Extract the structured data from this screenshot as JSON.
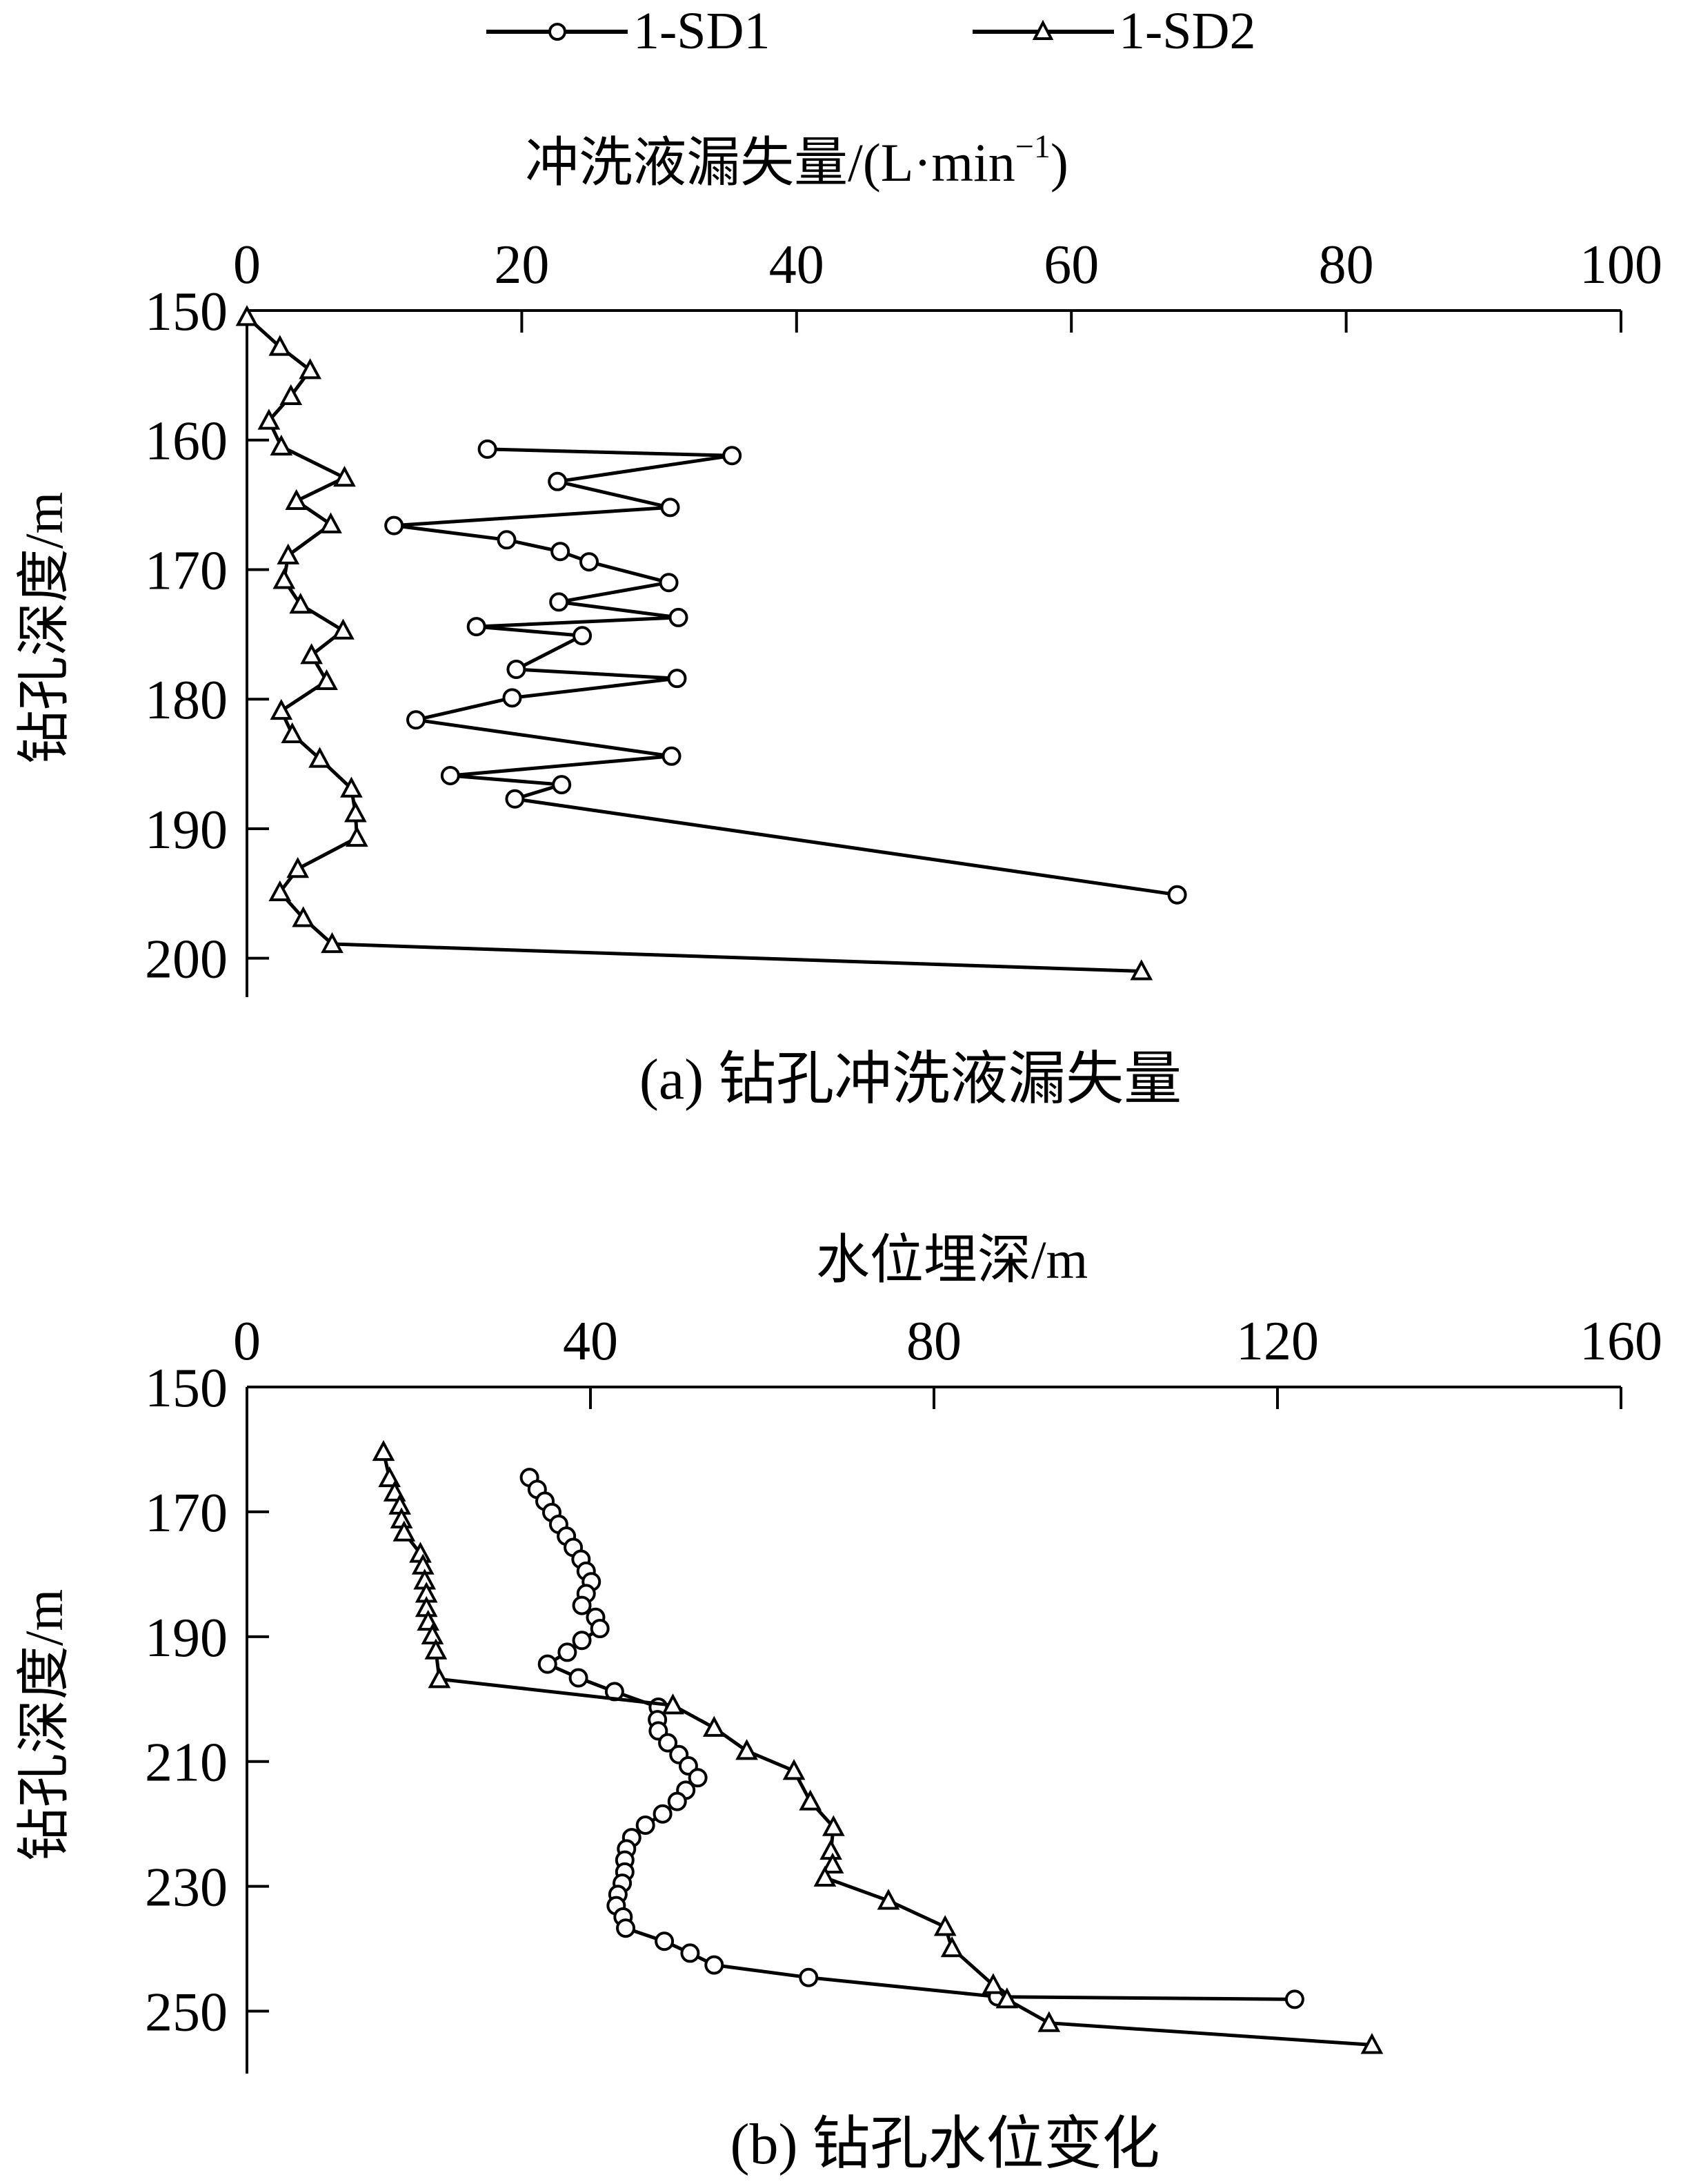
{
  "legend": [
    {
      "name": "1-SD1",
      "marker": "circle"
    },
    {
      "name": "1-SD2",
      "marker": "triangle"
    }
  ],
  "chart_data": [
    {
      "type": "line",
      "panel": "a",
      "caption": "(a)  钻孔冲洗液漏失量",
      "xlabel": "冲洗液漏失量/(L·min",
      "xlabel_sup": "−1",
      "xlabel_tail": ")",
      "ylabel": "钻孔深度/m",
      "xlim": [
        0,
        100
      ],
      "ylim": [
        150,
        203
      ],
      "xticks": [
        0,
        20,
        40,
        60,
        80,
        100
      ],
      "yticks": [
        150,
        160,
        170,
        180,
        190,
        200
      ],
      "x_axis_position": "top",
      "y_inverted": true,
      "grid": false,
      "legend_position": "top",
      "series": [
        {
          "name": "1-SD1",
          "marker": "circle",
          "points": [
            [
              17.5,
              160.7
            ],
            [
              35.3,
              161.2
            ],
            [
              22.6,
              163.2
            ],
            [
              30.8,
              165.2
            ],
            [
              10.7,
              166.6
            ],
            [
              18.9,
              167.7
            ],
            [
              22.8,
              168.6
            ],
            [
              24.9,
              169.4
            ],
            [
              30.7,
              171.0
            ],
            [
              22.7,
              172.5
            ],
            [
              31.4,
              173.7
            ],
            [
              16.7,
              174.4
            ],
            [
              24.4,
              175.1
            ],
            [
              19.6,
              177.7
            ],
            [
              31.3,
              178.4
            ],
            [
              19.3,
              179.9
            ],
            [
              12.3,
              181.6
            ],
            [
              30.9,
              184.4
            ],
            [
              14.8,
              185.9
            ],
            [
              22.9,
              186.6
            ],
            [
              19.5,
              187.7
            ],
            [
              67.7,
              195.1
            ]
          ]
        },
        {
          "name": "1-SD2",
          "marker": "triangle",
          "points": [
            [
              0.0,
              150.5
            ],
            [
              2.4,
              152.8
            ],
            [
              4.6,
              154.6
            ],
            [
              3.2,
              156.6
            ],
            [
              1.6,
              158.5
            ],
            [
              2.5,
              160.5
            ],
            [
              7.1,
              162.9
            ],
            [
              3.6,
              164.7
            ],
            [
              6.1,
              166.5
            ],
            [
              3.0,
              168.9
            ],
            [
              2.7,
              170.8
            ],
            [
              3.9,
              172.7
            ],
            [
              7.0,
              174.7
            ],
            [
              4.7,
              176.6
            ],
            [
              5.8,
              178.6
            ],
            [
              2.5,
              180.9
            ],
            [
              3.3,
              182.7
            ],
            [
              5.3,
              184.6
            ],
            [
              7.6,
              186.9
            ],
            [
              7.9,
              188.8
            ],
            [
              8.0,
              190.7
            ],
            [
              3.7,
              193.1
            ],
            [
              2.4,
              194.9
            ],
            [
              4.1,
              196.9
            ],
            [
              6.2,
              198.9
            ],
            [
              65.1,
              201.0
            ]
          ]
        }
      ]
    },
    {
      "type": "line",
      "panel": "b",
      "caption": "(b)  钻孔水位变化",
      "xlabel": "水位埋深/m",
      "ylabel": "钻孔深度/m",
      "xlim": [
        0,
        160
      ],
      "ylim": [
        150,
        260
      ],
      "xticks": [
        0,
        40,
        80,
        120,
        160
      ],
      "yticks": [
        150,
        170,
        190,
        210,
        230,
        250
      ],
      "x_axis_position": "top",
      "y_inverted": true,
      "grid": false,
      "series": [
        {
          "name": "1-SD1",
          "marker": "circle",
          "points": [
            [
              32.9,
              164.5
            ],
            [
              33.8,
              166.4
            ],
            [
              34.7,
              168.3
            ],
            [
              35.5,
              170.1
            ],
            [
              36.3,
              172.0
            ],
            [
              37.2,
              173.9
            ],
            [
              38.0,
              175.7
            ],
            [
              38.9,
              177.6
            ],
            [
              39.5,
              179.5
            ],
            [
              40.1,
              181.2
            ],
            [
              39.5,
              183.1
            ],
            [
              39.0,
              185.0
            ],
            [
              40.6,
              186.9
            ],
            [
              41.1,
              188.7
            ],
            [
              39.0,
              190.6
            ],
            [
              37.3,
              192.5
            ],
            [
              35.0,
              194.4
            ],
            [
              38.6,
              196.6
            ],
            [
              42.8,
              198.8
            ],
            [
              47.9,
              201.3
            ],
            [
              47.8,
              203.3
            ],
            [
              47.9,
              205.1
            ],
            [
              49.0,
              207.0
            ],
            [
              50.3,
              208.9
            ],
            [
              51.4,
              210.7
            ],
            [
              52.5,
              212.6
            ],
            [
              51.1,
              214.6
            ],
            [
              50.1,
              216.4
            ],
            [
              48.4,
              218.4
            ],
            [
              46.4,
              220.2
            ],
            [
              44.8,
              222.2
            ],
            [
              44.2,
              224.0
            ],
            [
              44.0,
              225.8
            ],
            [
              44.0,
              227.7
            ],
            [
              43.7,
              229.5
            ],
            [
              43.2,
              231.3
            ],
            [
              43.0,
              233.1
            ],
            [
              43.8,
              234.9
            ],
            [
              44.1,
              236.7
            ],
            [
              48.6,
              238.8
            ],
            [
              51.6,
              240.7
            ],
            [
              54.4,
              242.6
            ],
            [
              65.4,
              244.6
            ],
            [
              87.4,
              247.7
            ],
            [
              122.0,
              248.1
            ]
          ]
        },
        {
          "name": "1-SD2",
          "marker": "triangle",
          "points": [
            [
              15.9,
              160.4
            ],
            [
              16.6,
              164.6
            ],
            [
              17.2,
              166.9
            ],
            [
              17.8,
              169.0
            ],
            [
              18.0,
              171.2
            ],
            [
              18.3,
              173.3
            ],
            [
              20.2,
              176.7
            ],
            [
              20.5,
              178.6
            ],
            [
              20.7,
              181.0
            ],
            [
              20.9,
              183.1
            ],
            [
              20.9,
              185.4
            ],
            [
              21.1,
              187.6
            ],
            [
              21.6,
              189.8
            ],
            [
              22.0,
              192.2
            ],
            [
              22.4,
              196.8
            ],
            [
              49.6,
              201.0
            ],
            [
              54.4,
              204.6
            ],
            [
              58.2,
              208.3
            ],
            [
              63.7,
              211.5
            ],
            [
              65.6,
              216.4
            ],
            [
              68.3,
              220.5
            ],
            [
              68.0,
              224.3
            ],
            [
              68.2,
              226.5
            ],
            [
              67.3,
              228.6
            ],
            [
              74.7,
              232.3
            ],
            [
              81.3,
              236.5
            ],
            [
              82.1,
              239.9
            ],
            [
              86.9,
              245.8
            ],
            [
              88.5,
              248.1
            ],
            [
              93.4,
              251.9
            ],
            [
              131.0,
              255.4
            ]
          ]
        }
      ]
    }
  ]
}
